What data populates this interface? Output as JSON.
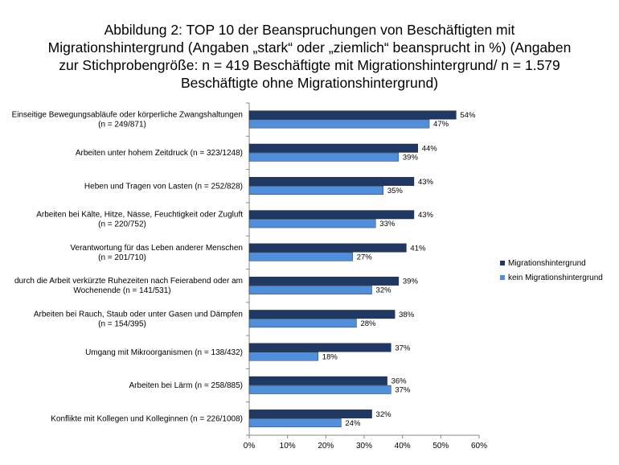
{
  "title_lines": [
    "Abbildung 2: TOP 10 der Beanspruchungen von Beschäftigten mit",
    "Migrationshintergrund (Angaben „stark“ oder „ziemlich“ beansprucht in %) (Angaben",
    "zur Stichprobengröße: n = 419 Beschäftigte mit Migrationshintergrund/ n = 1.579",
    "Beschäftigte ohne Migrationshintergrund)"
  ],
  "chart_data": {
    "type": "bar",
    "orientation": "horizontal",
    "categories": [
      [
        "Einseitige Bewegungsabläufe oder körperliche Zwangshaltungen",
        "(n = 249/871)"
      ],
      [
        "Arbeiten unter hohem Zeitdruck (n = 323/1248)"
      ],
      [
        "Heben und Tragen von Lasten (n = 252/828)"
      ],
      [
        "Arbeiten bei Kälte, Hitze, Nässe, Feuchtigkeit oder Zugluft",
        "(n = 220/752)"
      ],
      [
        "Verantwortung für das Leben anderer Menschen",
        "(n = 201/710)"
      ],
      [
        "durch die Arbeit verkürzte Ruhezeiten nach Feierabend oder am",
        "Wochenende (n = 141/531)"
      ],
      [
        "Arbeiten bei Rauch, Staub oder unter Gasen und Dämpfen",
        "(n = 154/395)"
      ],
      [
        "Umgang mit Mikroorganismen (n = 138/432)"
      ],
      [
        "Arbeiten bei Lärm (n = 258/885)"
      ],
      [
        "Konflikte mit Kollegen und Kolleginnen (n = 226/1008)"
      ]
    ],
    "series": [
      {
        "name": "Migrationshintergrund",
        "color": "#1f3864",
        "values": [
          54,
          44,
          43,
          43,
          41,
          39,
          38,
          37,
          36,
          32
        ]
      },
      {
        "name": "kein Migrationshintergrund",
        "color": "#4f8fdc",
        "values": [
          47,
          39,
          35,
          33,
          27,
          32,
          28,
          18,
          37,
          24
        ]
      }
    ],
    "xlim": [
      0,
      60
    ],
    "xticks": [
      "0%",
      "10%",
      "20%",
      "30%",
      "40%",
      "50%",
      "60%"
    ],
    "value_suffix": "%",
    "legend_position": "right",
    "grid": false
  }
}
